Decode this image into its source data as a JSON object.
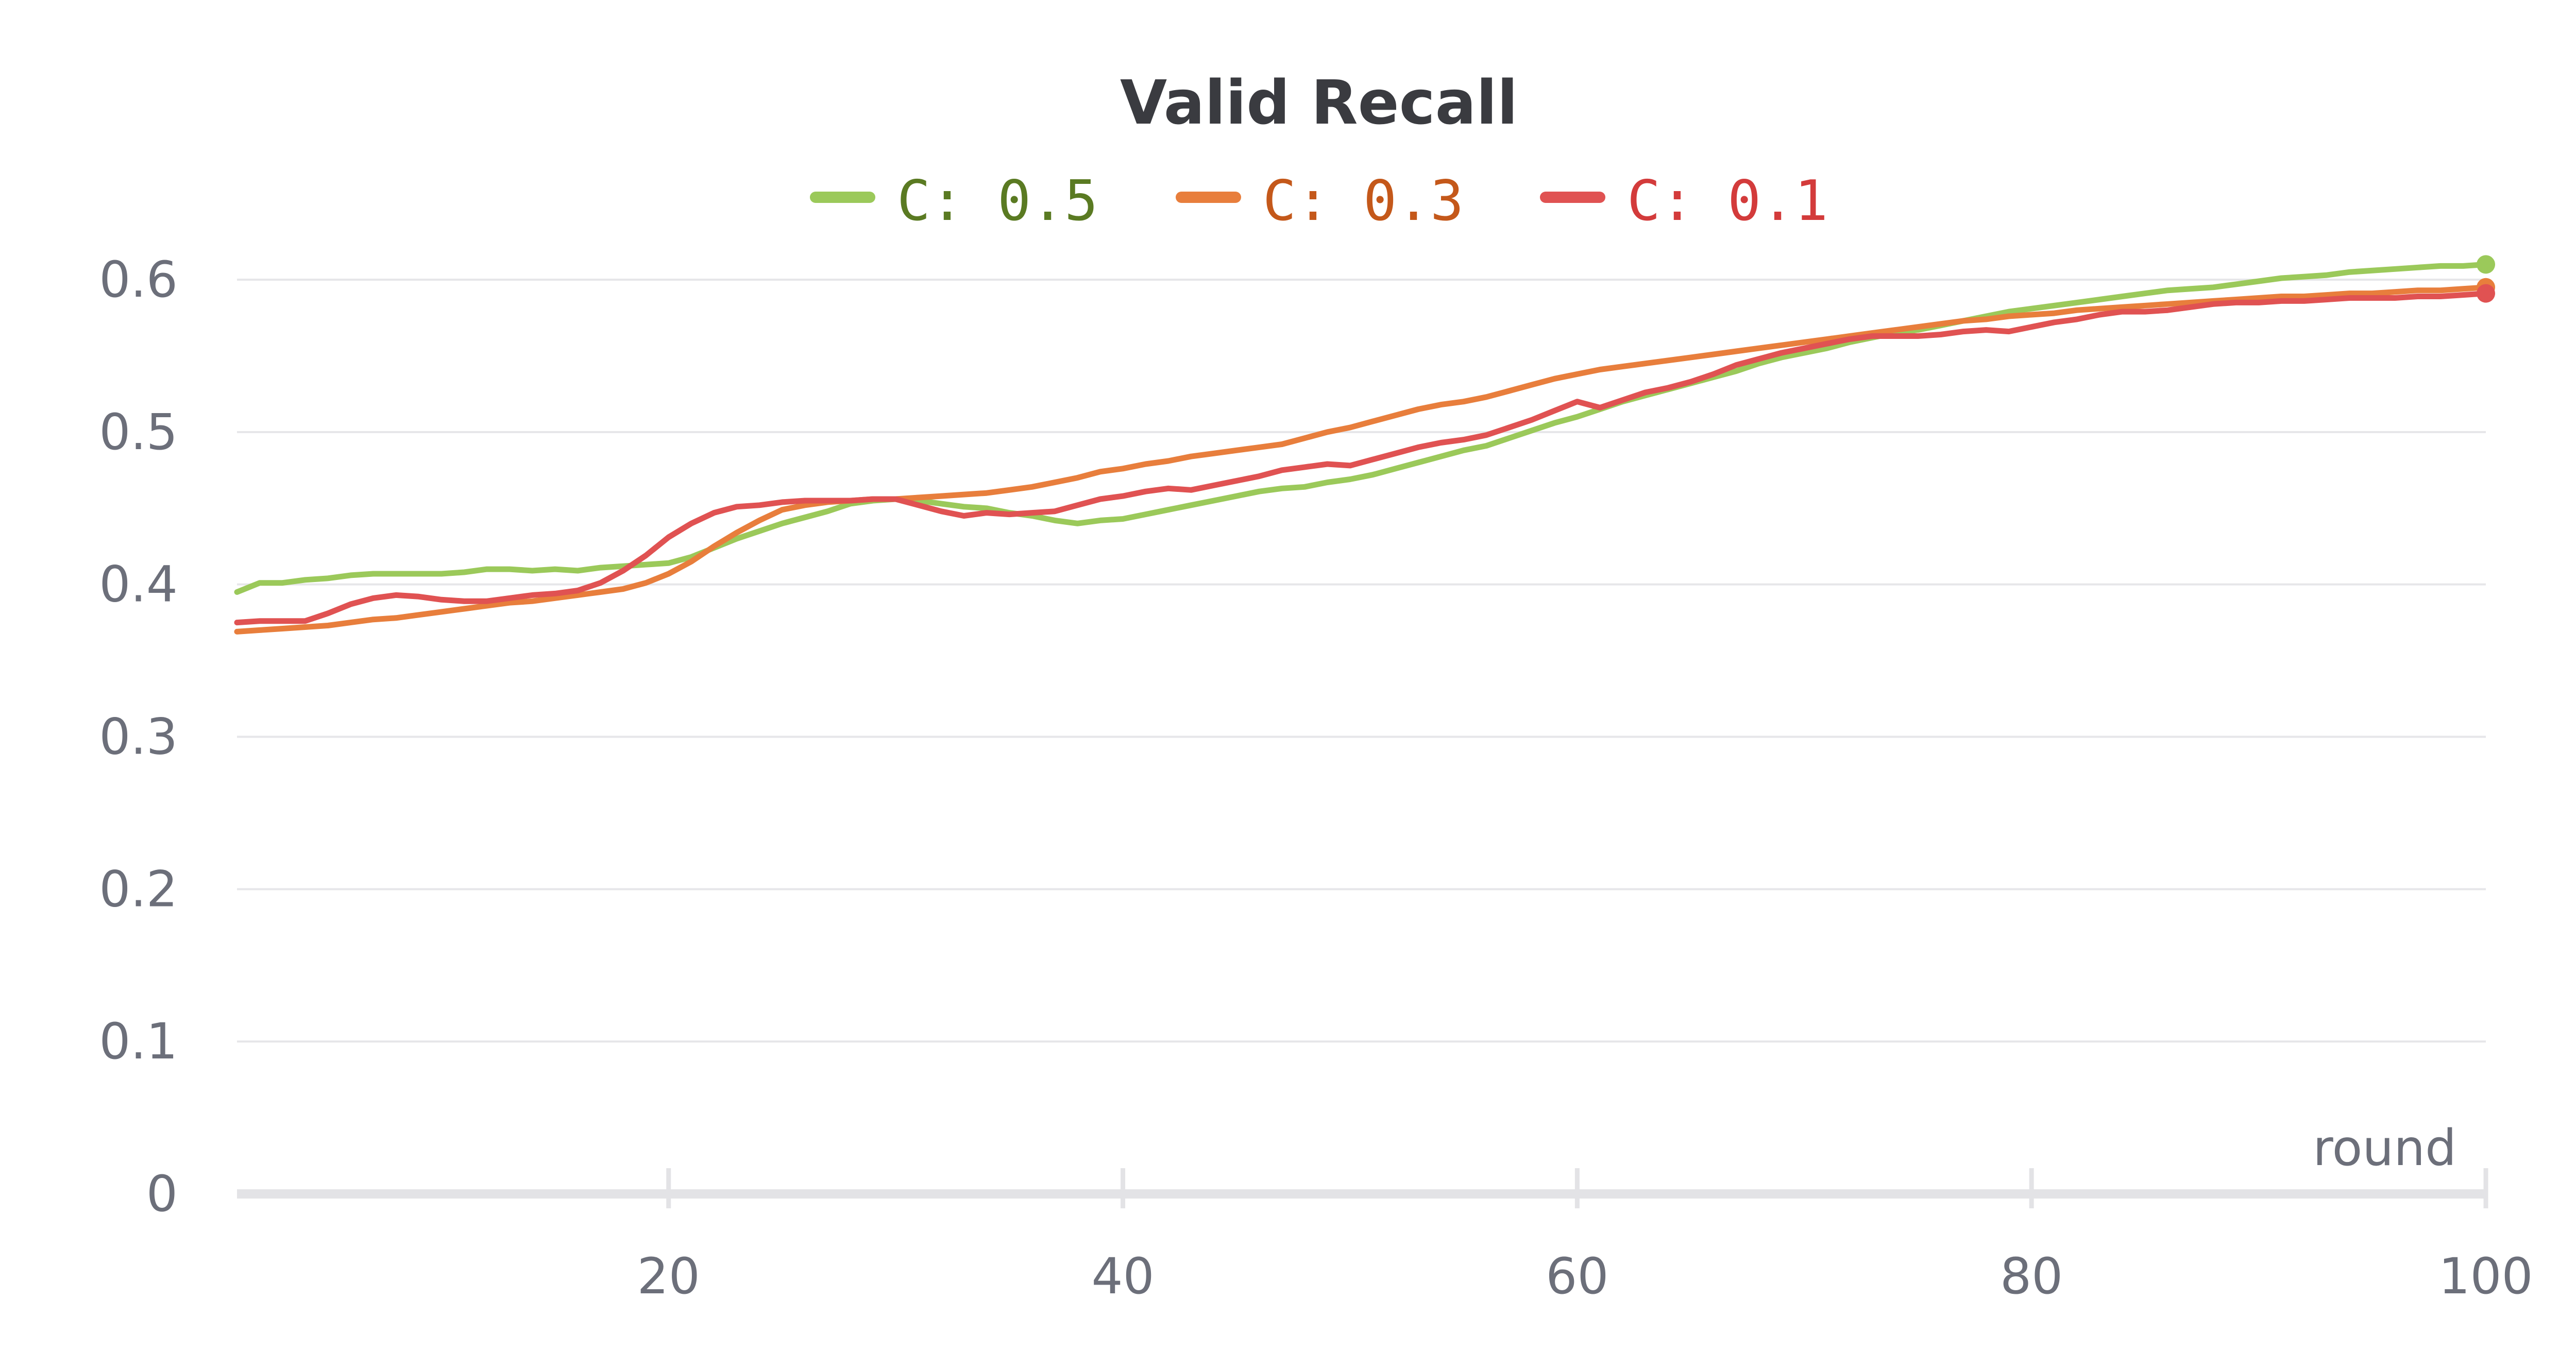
{
  "chart_data": {
    "type": "line",
    "title": "Valid Recall",
    "xlabel": "round",
    "ylabel": "",
    "xlim": [
      1,
      100
    ],
    "ylim": [
      0,
      0.6
    ],
    "x_ticks": [
      "20",
      "40",
      "60",
      "80",
      "100"
    ],
    "x_tick_values": [
      20,
      40,
      60,
      80,
      100
    ],
    "y_ticks": [
      "0",
      "0.1",
      "0.2",
      "0.3",
      "0.4",
      "0.5",
      "0.6"
    ],
    "y_tick_values": [
      0,
      0.1,
      0.2,
      0.3,
      0.4,
      0.5,
      0.6
    ],
    "grid": "horizontal",
    "legend_position": "top",
    "x": [
      1,
      2,
      3,
      4,
      5,
      6,
      7,
      8,
      9,
      10,
      11,
      12,
      13,
      14,
      15,
      16,
      17,
      18,
      19,
      20,
      21,
      22,
      23,
      24,
      25,
      26,
      27,
      28,
      29,
      30,
      31,
      32,
      33,
      34,
      35,
      36,
      37,
      38,
      39,
      40,
      41,
      42,
      43,
      44,
      45,
      46,
      47,
      48,
      49,
      50,
      51,
      52,
      53,
      54,
      55,
      56,
      57,
      58,
      59,
      60,
      61,
      62,
      63,
      64,
      65,
      66,
      67,
      68,
      69,
      70,
      71,
      72,
      73,
      74,
      75,
      76,
      77,
      78,
      79,
      80,
      81,
      82,
      83,
      84,
      85,
      86,
      87,
      88,
      89,
      90,
      91,
      92,
      93,
      94,
      95,
      96,
      97,
      98,
      99,
      100
    ],
    "series": [
      {
        "name": "C: 0.5",
        "color": "#9bc95a",
        "text_color": "#5a7a22",
        "values": [
          0.395,
          0.401,
          0.401,
          0.403,
          0.404,
          0.406,
          0.407,
          0.407,
          0.407,
          0.407,
          0.408,
          0.41,
          0.41,
          0.409,
          0.41,
          0.409,
          0.411,
          0.412,
          0.413,
          0.414,
          0.418,
          0.424,
          0.43,
          0.435,
          0.44,
          0.444,
          0.448,
          0.453,
          0.455,
          0.456,
          0.455,
          0.453,
          0.451,
          0.45,
          0.447,
          0.445,
          0.442,
          0.44,
          0.442,
          0.443,
          0.446,
          0.449,
          0.452,
          0.455,
          0.458,
          0.461,
          0.463,
          0.464,
          0.467,
          0.469,
          0.472,
          0.476,
          0.48,
          0.484,
          0.488,
          0.491,
          0.496,
          0.501,
          0.506,
          0.51,
          0.515,
          0.52,
          0.524,
          0.528,
          0.532,
          0.536,
          0.54,
          0.545,
          0.549,
          0.552,
          0.555,
          0.559,
          0.562,
          0.565,
          0.567,
          0.57,
          0.573,
          0.576,
          0.579,
          0.581,
          0.583,
          0.585,
          0.587,
          0.589,
          0.591,
          0.593,
          0.594,
          0.595,
          0.597,
          0.599,
          0.601,
          0.602,
          0.603,
          0.605,
          0.606,
          0.607,
          0.608,
          0.609,
          0.609,
          0.61
        ]
      },
      {
        "name": "C: 0.3",
        "color": "#e87e3c",
        "text_color": "#c4581a",
        "values": [
          0.369,
          0.37,
          0.371,
          0.372,
          0.373,
          0.375,
          0.377,
          0.378,
          0.38,
          0.382,
          0.384,
          0.386,
          0.388,
          0.389,
          0.391,
          0.393,
          0.395,
          0.397,
          0.401,
          0.407,
          0.415,
          0.425,
          0.434,
          0.442,
          0.449,
          0.452,
          0.454,
          0.455,
          0.456,
          0.456,
          0.457,
          0.458,
          0.459,
          0.46,
          0.462,
          0.464,
          0.467,
          0.47,
          0.474,
          0.476,
          0.479,
          0.481,
          0.484,
          0.486,
          0.488,
          0.49,
          0.492,
          0.496,
          0.5,
          0.503,
          0.507,
          0.511,
          0.515,
          0.518,
          0.52,
          0.523,
          0.527,
          0.531,
          0.535,
          0.538,
          0.541,
          0.543,
          0.545,
          0.547,
          0.549,
          0.551,
          0.553,
          0.555,
          0.557,
          0.559,
          0.561,
          0.563,
          0.565,
          0.567,
          0.569,
          0.571,
          0.573,
          0.574,
          0.576,
          0.577,
          0.578,
          0.58,
          0.581,
          0.582,
          0.583,
          0.584,
          0.585,
          0.586,
          0.587,
          0.588,
          0.589,
          0.589,
          0.59,
          0.591,
          0.591,
          0.592,
          0.593,
          0.593,
          0.594,
          0.595
        ]
      },
      {
        "name": "C: 0.1",
        "color": "#e05252",
        "text_color": "#d33b3b",
        "values": [
          0.375,
          0.376,
          0.376,
          0.376,
          0.381,
          0.387,
          0.391,
          0.393,
          0.392,
          0.39,
          0.389,
          0.389,
          0.391,
          0.393,
          0.394,
          0.396,
          0.401,
          0.409,
          0.419,
          0.431,
          0.44,
          0.447,
          0.451,
          0.452,
          0.454,
          0.455,
          0.455,
          0.455,
          0.456,
          0.456,
          0.452,
          0.448,
          0.445,
          0.447,
          0.446,
          0.447,
          0.448,
          0.452,
          0.456,
          0.458,
          0.461,
          0.463,
          0.462,
          0.465,
          0.468,
          0.471,
          0.475,
          0.477,
          0.479,
          0.478,
          0.482,
          0.486,
          0.49,
          0.493,
          0.495,
          0.498,
          0.503,
          0.508,
          0.514,
          0.52,
          0.516,
          0.521,
          0.526,
          0.529,
          0.533,
          0.538,
          0.544,
          0.548,
          0.552,
          0.555,
          0.558,
          0.561,
          0.563,
          0.563,
          0.563,
          0.564,
          0.566,
          0.567,
          0.566,
          0.569,
          0.572,
          0.574,
          0.577,
          0.579,
          0.579,
          0.58,
          0.582,
          0.584,
          0.585,
          0.585,
          0.586,
          0.586,
          0.587,
          0.588,
          0.588,
          0.588,
          0.589,
          0.589,
          0.59,
          0.591
        ]
      }
    ]
  }
}
